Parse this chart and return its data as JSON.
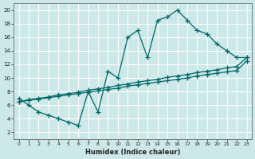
{
  "xlabel": "Humidex (Indice chaleur)",
  "bg_color": "#cce8e8",
  "grid_color": "#ffffff",
  "line_color": "#006666",
  "xlim": [
    -0.5,
    23.5
  ],
  "ylim": [
    1,
    21
  ],
  "xticks": [
    0,
    1,
    2,
    3,
    4,
    5,
    6,
    7,
    8,
    9,
    10,
    11,
    12,
    13,
    14,
    15,
    16,
    17,
    18,
    19,
    20,
    21,
    22,
    23
  ],
  "yticks": [
    2,
    4,
    6,
    8,
    10,
    12,
    14,
    16,
    18,
    20
  ],
  "curve_x": [
    0,
    1,
    2,
    3,
    4,
    5,
    6,
    7,
    8,
    9,
    10,
    11,
    12,
    13,
    14,
    15,
    16,
    17,
    18,
    19,
    20,
    21,
    22,
    23
  ],
  "curve_y": [
    7.0,
    6.0,
    5.0,
    4.5,
    4.0,
    3.5,
    3.0,
    8.0,
    5.0,
    11.0,
    10.0,
    16.0,
    17.0,
    13.0,
    18.5,
    19.0,
    20.0,
    18.5,
    17.0,
    16.5,
    15.0,
    14.0,
    13.0,
    13.0
  ],
  "diag1_x": [
    0,
    1,
    2,
    3,
    4,
    5,
    6,
    7,
    8,
    9,
    10,
    11,
    12,
    13,
    14,
    15,
    16,
    17,
    18,
    19,
    20,
    21,
    22,
    23
  ],
  "diag1_y": [
    6.5,
    6.8,
    7.0,
    7.2,
    7.5,
    7.7,
    7.9,
    8.2,
    8.4,
    8.6,
    8.9,
    9.1,
    9.4,
    9.6,
    9.8,
    10.1,
    10.3,
    10.5,
    10.8,
    11.0,
    11.2,
    11.5,
    11.7,
    13.0
  ],
  "diag2_x": [
    0,
    1,
    2,
    3,
    4,
    5,
    6,
    7,
    8,
    9,
    10,
    11,
    12,
    13,
    14,
    15,
    16,
    17,
    18,
    19,
    20,
    21,
    22,
    23
  ],
  "diag2_y": [
    6.5,
    6.7,
    6.9,
    7.1,
    7.3,
    7.5,
    7.7,
    7.9,
    8.1,
    8.3,
    8.5,
    8.8,
    9.0,
    9.2,
    9.4,
    9.6,
    9.8,
    10.0,
    10.3,
    10.5,
    10.7,
    10.9,
    11.1,
    12.5
  ]
}
